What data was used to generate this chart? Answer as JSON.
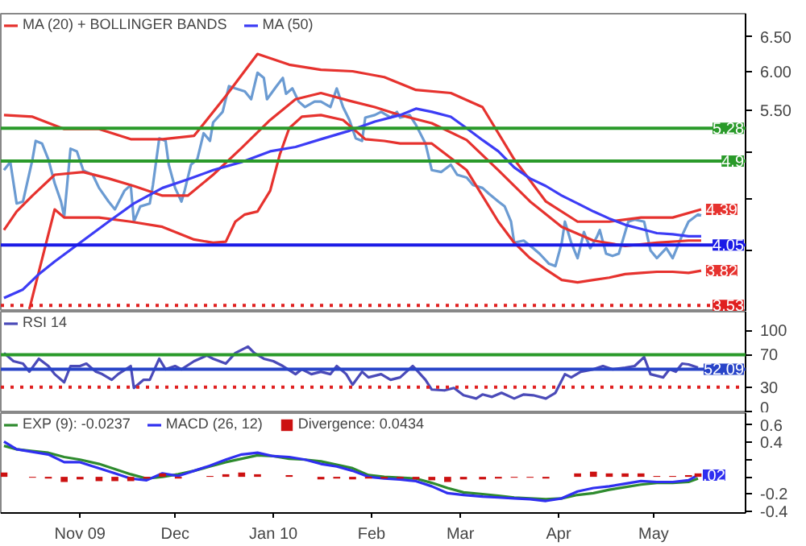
{
  "chart_data": [
    {
      "type": "line",
      "log": true,
      "legend": "top left",
      "tick_labels": "y",
      "xlim": [
        "2009-10-07",
        "2010-05-30"
      ],
      "ylim": [
        3.48,
        6.85
      ],
      "yticks": [
        {
          "value": 6.5,
          "label": "6.50"
        },
        {
          "value": 6.0,
          "label": "6.00"
        },
        {
          "value": 5.5,
          "label": "5.50"
        },
        {
          "value": 5.0,
          "label": null
        },
        {
          "value": 4.5,
          "label": null
        },
        {
          "value": 4.0,
          "label": null
        }
      ],
      "ref_lines": [
        {
          "axis": "y",
          "value": 5.28,
          "label": "5.28",
          "color": "#2a9a2a",
          "line_style": "solid"
        },
        {
          "axis": "y",
          "value": 4.9,
          "label": "4.9",
          "color": "#2a9a2a",
          "line_style": "solid"
        },
        {
          "axis": "y",
          "value": 4.05,
          "label": "4.05",
          "color": "#1a1ae6",
          "line_style": "solid"
        },
        {
          "axis": "y",
          "value": 3.53,
          "label": "3.53",
          "color": "#e02020",
          "line_style": "dotted"
        }
      ],
      "annotations": [
        {
          "text": "4.39",
          "x": "2010-05-16",
          "y": 4.39
        },
        {
          "text": "3.82",
          "x": "2010-05-16",
          "y": 3.82
        }
      ],
      "series": [
        {
          "color": "#6b9bd2",
          "x": [
            "2009-10-08",
            "2009-10-10",
            "2009-10-12",
            "2009-10-14",
            "2009-10-17",
            "2009-10-18",
            "2009-10-20",
            "2009-10-22",
            "2009-10-24",
            "2009-10-26",
            "2009-10-27",
            "2009-10-29",
            "2009-10-31",
            "2009-11-02",
            "2009-11-03",
            "2009-11-05",
            "2009-11-07",
            "2009-11-10",
            "2009-11-12",
            "2009-11-15",
            "2009-11-17",
            "2009-11-18",
            "2009-11-20",
            "2009-11-23",
            "2009-11-24",
            "2009-11-26",
            "2009-11-28",
            "2009-11-29",
            "2009-12-01",
            "2009-12-03",
            "2009-12-04",
            "2009-12-06",
            "2009-12-08",
            "2009-12-10",
            "2009-12-12",
            "2009-12-13",
            "2009-12-16",
            "2009-12-18",
            "2009-12-20",
            "2009-12-23",
            "2009-12-25",
            "2009-12-27",
            "2009-12-29",
            "2009-12-30",
            "2010-01-02",
            "2010-01-04",
            "2010-01-05",
            "2010-01-07",
            "2010-01-09",
            "2010-01-11",
            "2010-01-14",
            "2010-01-16",
            "2010-01-19",
            "2010-01-21",
            "2010-01-23",
            "2010-01-25",
            "2010-01-27",
            "2010-01-29",
            "2010-01-30",
            "2010-02-02",
            "2010-02-04",
            "2010-02-07",
            "2010-02-09",
            "2010-02-10",
            "2010-02-13",
            "2010-02-15",
            "2010-02-18",
            "2010-02-20",
            "2010-02-23",
            "2010-02-26",
            "2010-02-28",
            "2010-03-03",
            "2010-03-05",
            "2010-03-08",
            "2010-03-10",
            "2010-03-13",
            "2010-03-15",
            "2010-03-17",
            "2010-03-18",
            "2010-03-21",
            "2010-03-24",
            "2010-03-26",
            "2010-03-29",
            "2010-03-31",
            "2010-04-02",
            "2010-04-03",
            "2010-04-05",
            "2010-04-07",
            "2010-04-09",
            "2010-04-11",
            "2010-04-13",
            "2010-04-14",
            "2010-04-16",
            "2010-04-18",
            "2010-04-20",
            "2010-04-23",
            "2010-04-25",
            "2010-04-28",
            "2010-04-30",
            "2010-05-02",
            "2010-05-05",
            "2010-05-07",
            "2010-05-10",
            "2010-05-12",
            "2010-05-15",
            "2010-05-16"
          ],
          "values": [
            4.8,
            4.89,
            4.45,
            4.47,
            4.92,
            5.13,
            5.1,
            4.92,
            4.66,
            4.47,
            4.32,
            5.04,
            5.01,
            4.8,
            4.78,
            4.75,
            4.61,
            4.47,
            4.39,
            4.58,
            4.64,
            4.27,
            4.42,
            4.45,
            4.64,
            5.16,
            5.13,
            4.86,
            4.61,
            4.47,
            4.58,
            4.86,
            4.92,
            5.22,
            5.13,
            5.35,
            5.48,
            5.81,
            5.78,
            5.74,
            5.64,
            5.99,
            5.92,
            5.64,
            5.81,
            5.92,
            5.71,
            5.78,
            5.61,
            5.54,
            5.61,
            5.61,
            5.54,
            5.78,
            5.54,
            5.38,
            5.16,
            5.13,
            5.41,
            5.44,
            5.48,
            5.41,
            5.48,
            5.41,
            5.44,
            5.32,
            5.1,
            4.8,
            4.78,
            4.86,
            4.75,
            4.72,
            4.64,
            4.61,
            4.55,
            4.47,
            4.42,
            4.27,
            4.07,
            4.09,
            4.02,
            3.97,
            3.88,
            3.86,
            4.07,
            4.27,
            4.07,
            3.93,
            4.17,
            4.02,
            4.12,
            4.19,
            3.97,
            3.95,
            3.97,
            4.27,
            4.29,
            4.27,
            4.0,
            3.93,
            4.02,
            3.93,
            4.14,
            4.27,
            4.34,
            4.33
          ]
        },
        {
          "color": "#e6322e",
          "x": [
            "2009-10-08",
            "2009-10-17",
            "2009-10-27",
            "2009-11-07",
            "2009-11-17",
            "2009-11-27",
            "2009-12-07",
            "2009-12-17",
            "2009-12-27",
            "2010-01-06",
            "2010-01-16",
            "2010-01-26",
            "2010-02-05",
            "2010-02-15",
            "2010-02-26",
            "2010-03-08",
            "2010-03-18",
            "2010-03-28",
            "2010-04-07",
            "2010-04-17",
            "2010-04-27",
            "2010-05-07",
            "2010-05-16"
          ],
          "values": [
            5.44,
            5.42,
            5.27,
            5.27,
            5.15,
            5.15,
            5.19,
            5.68,
            6.25,
            6.1,
            6.03,
            6.01,
            5.93,
            5.76,
            5.72,
            5.54,
            4.92,
            4.47,
            4.27,
            4.27,
            4.31,
            4.31,
            4.39
          ]
        },
        {
          "name": "MA (20) + BOLLINGER BANDS",
          "color": "#e6322e",
          "x": [
            "2009-10-08",
            "2009-10-12",
            "2009-10-17",
            "2009-10-24",
            "2009-11-02",
            "2009-11-10",
            "2009-11-18",
            "2009-11-27",
            "2009-12-05",
            "2009-12-13",
            "2009-12-22",
            "2009-12-31",
            "2010-01-08",
            "2010-01-16",
            "2010-01-25",
            "2010-02-02",
            "2010-02-10",
            "2010-02-20",
            "2010-03-03",
            "2010-03-13",
            "2010-03-23",
            "2010-04-02",
            "2010-04-12",
            "2010-04-22",
            "2010-05-02",
            "2010-05-12",
            "2010-05-16"
          ],
          "values": [
            4.19,
            4.37,
            4.53,
            4.75,
            4.78,
            4.71,
            4.63,
            4.53,
            4.53,
            4.75,
            5.05,
            5.38,
            5.64,
            5.72,
            5.62,
            5.54,
            5.44,
            5.34,
            5.14,
            4.8,
            4.47,
            4.22,
            4.09,
            4.04,
            4.07,
            4.09,
            4.09
          ]
        },
        {
          "color": "#e6322e",
          "x": [
            "2009-10-16",
            "2009-10-24",
            "2009-10-27",
            "2009-11-07",
            "2009-11-17",
            "2009-11-27",
            "2009-12-07",
            "2009-12-13",
            "2009-12-17",
            "2009-12-20",
            "2009-12-23",
            "2009-12-27",
            "2009-12-31",
            "2010-01-03",
            "2010-01-06",
            "2010-01-10",
            "2010-01-16",
            "2010-01-23",
            "2010-01-30",
            "2010-02-05",
            "2010-02-10",
            "2010-02-20",
            "2010-03-03",
            "2010-03-13",
            "2010-03-18",
            "2010-03-23",
            "2010-03-28",
            "2010-04-02",
            "2010-04-07",
            "2010-04-12",
            "2010-04-17",
            "2010-04-22",
            "2010-04-27",
            "2010-05-02",
            "2010-05-07",
            "2010-05-12",
            "2010-05-16"
          ],
          "values": [
            3.5,
            4.39,
            4.31,
            4.31,
            4.27,
            4.22,
            4.1,
            4.07,
            4.08,
            4.27,
            4.34,
            4.37,
            4.58,
            4.97,
            5.28,
            5.42,
            5.44,
            5.38,
            5.15,
            5.13,
            5.1,
            5.1,
            4.8,
            4.27,
            4.07,
            3.93,
            3.83,
            3.74,
            3.72,
            3.74,
            3.76,
            3.79,
            3.8,
            3.81,
            3.81,
            3.8,
            3.82
          ]
        },
        {
          "name": "MA (50)",
          "color": "#3c3cf5",
          "x": [
            "2009-10-08",
            "2009-10-14",
            "2009-10-19",
            "2009-10-24",
            "2009-11-10",
            "2009-11-18",
            "2009-11-27",
            "2009-12-05",
            "2009-12-13",
            "2009-12-22",
            "2009-12-31",
            "2010-01-08",
            "2010-01-16",
            "2010-01-25",
            "2010-02-02",
            "2010-02-10",
            "2010-02-15",
            "2010-02-20",
            "2010-02-26",
            "2010-03-03",
            "2010-03-08",
            "2010-03-13",
            "2010-03-18",
            "2010-03-23",
            "2010-03-28",
            "2010-04-02",
            "2010-04-07",
            "2010-04-12",
            "2010-04-17",
            "2010-04-22",
            "2010-04-27",
            "2010-05-02",
            "2010-05-07",
            "2010-05-12",
            "2010-05-16"
          ],
          "values": [
            3.59,
            3.66,
            3.79,
            3.9,
            4.27,
            4.45,
            4.61,
            4.7,
            4.8,
            4.89,
            5.01,
            5.06,
            5.15,
            5.25,
            5.36,
            5.44,
            5.52,
            5.48,
            5.42,
            5.28,
            5.14,
            5.01,
            4.83,
            4.71,
            4.63,
            4.53,
            4.45,
            4.37,
            4.3,
            4.24,
            4.2,
            4.16,
            4.15,
            4.13,
            4.13
          ]
        }
      ]
    },
    {
      "type": "line",
      "legend": "top left",
      "tick_labels": "y",
      "xlim": [
        "2009-10-07",
        "2010-05-30"
      ],
      "ylim": [
        -2,
        123
      ],
      "yticks": [
        100,
        70,
        30,
        0
      ],
      "ref_lines": [
        {
          "axis": "y",
          "value": 70,
          "color": "#2a9a2a",
          "line_style": "solid"
        },
        {
          "axis": "y",
          "value": 52.09,
          "label": "52.09",
          "color": "#2844c8",
          "line_style": "solid"
        },
        {
          "axis": "y",
          "value": 30,
          "color": "#e02020",
          "line_style": "dotted"
        }
      ],
      "series": [
        {
          "name": "RSI 14",
          "color": "#4a4ab8",
          "x": [
            "2009-10-08",
            "2009-10-11",
            "2009-10-14",
            "2009-10-16",
            "2009-10-19",
            "2009-10-22",
            "2009-10-24",
            "2009-10-27",
            "2009-10-29",
            "2009-11-01",
            "2009-11-03",
            "2009-11-06",
            "2009-11-08",
            "2009-11-11",
            "2009-11-13",
            "2009-11-17",
            "2009-11-18",
            "2009-11-21",
            "2009-11-23",
            "2009-11-26",
            "2009-11-28",
            "2009-12-01",
            "2009-12-03",
            "2009-12-07",
            "2009-12-11",
            "2009-12-13",
            "2009-12-17",
            "2009-12-20",
            "2009-12-24",
            "2009-12-26",
            "2009-12-29",
            "2010-01-01",
            "2010-01-04",
            "2010-01-08",
            "2010-01-10",
            "2010-01-13",
            "2010-01-16",
            "2010-01-19",
            "2010-01-21",
            "2010-01-24",
            "2010-01-26",
            "2010-01-29",
            "2010-01-31",
            "2010-02-04",
            "2010-02-07",
            "2010-02-10",
            "2010-02-14",
            "2010-02-15",
            "2010-02-18",
            "2010-02-20",
            "2010-02-24",
            "2010-02-27",
            "2010-03-02",
            "2010-03-06",
            "2010-03-08",
            "2010-03-11",
            "2010-03-14",
            "2010-03-18",
            "2010-03-21",
            "2010-03-24",
            "2010-03-28",
            "2010-03-31",
            "2010-04-03",
            "2010-04-05",
            "2010-04-08",
            "2010-04-12",
            "2010-04-15",
            "2010-04-18",
            "2010-04-22",
            "2010-04-25",
            "2010-04-28",
            "2010-04-30",
            "2010-05-04",
            "2010-05-06",
            "2010-05-08",
            "2010-05-10",
            "2010-05-12",
            "2010-05-15"
          ],
          "values": [
            72,
            62,
            59,
            49,
            65,
            56,
            46,
            36,
            56,
            56,
            59,
            49,
            46,
            39,
            46,
            56,
            29,
            39,
            39,
            65,
            52,
            56,
            52,
            62,
            69,
            65,
            59,
            72,
            80,
            72,
            65,
            62,
            56,
            46,
            52,
            46,
            49,
            46,
            56,
            46,
            33,
            49,
            42,
            46,
            39,
            42,
            56,
            52,
            39,
            27,
            26,
            29,
            20,
            16,
            21,
            18,
            23,
            16,
            21,
            20,
            16,
            23,
            46,
            42,
            49,
            52,
            56,
            52,
            54,
            56,
            67,
            46,
            42,
            52,
            49,
            59,
            58,
            54
          ]
        }
      ]
    },
    {
      "type": "line",
      "legend": "top left",
      "xlim": [
        "2009-10-07",
        "2010-05-30"
      ],
      "ylim": [
        -0.42,
        0.74
      ],
      "xticks": [
        {
          "value": "2009-11-01",
          "label": "Nov 09"
        },
        {
          "value": "2009-12-01",
          "label": "Dec"
        },
        {
          "value": "2010-01-01",
          "label": "Jan 10"
        },
        {
          "value": "2010-02-01",
          "label": "Feb"
        },
        {
          "value": "2010-03-01",
          "label": "Mar"
        },
        {
          "value": "2010-04-01",
          "label": "Apr"
        },
        {
          "value": "2010-05-01",
          "label": "May"
        }
      ],
      "yticks": [
        0.6,
        0.4,
        {
          "value": 0.2,
          "label": null
        },
        {
          "value": 0,
          "label": null
        },
        -0.2,
        -0.4
      ],
      "annotations": [
        {
          "text": ".02",
          "x": "2010-05-15",
          "y": 0.02
        }
      ],
      "x": [
        "2009-10-08",
        "2009-10-12",
        "2009-10-17",
        "2009-10-22",
        "2009-10-27",
        "2009-11-01",
        "2009-11-07",
        "2009-11-12",
        "2009-11-17",
        "2009-11-22",
        "2009-11-27",
        "2009-12-02",
        "2009-12-07",
        "2009-12-12",
        "2009-12-17",
        "2009-12-22",
        "2009-12-27",
        "2010-01-01",
        "2010-01-06",
        "2010-01-11",
        "2010-01-16",
        "2010-01-21",
        "2010-01-26",
        "2010-01-31",
        "2010-02-05",
        "2010-02-10",
        "2010-02-15",
        "2010-02-20",
        "2010-02-25",
        "2010-03-02",
        "2010-03-08",
        "2010-03-13",
        "2010-03-18",
        "2010-03-23",
        "2010-03-28",
        "2010-04-02",
        "2010-04-07",
        "2010-04-12",
        "2010-04-17",
        "2010-04-22",
        "2010-04-27",
        "2010-05-02",
        "2010-05-07",
        "2010-05-12",
        "2010-05-15"
      ],
      "series": [
        {
          "name": "Divergence: 0.0434",
          "type": "bar",
          "color": "#cc1111",
          "values": [
            0.05,
            0,
            -0.01,
            -0.02,
            -0.06,
            -0.03,
            -0.05,
            -0.05,
            -0.05,
            -0.02,
            0.04,
            -0.02,
            0,
            0.01,
            0.03,
            0.05,
            0.03,
            0,
            0.02,
            0,
            -0.03,
            -0.02,
            -0.03,
            -0.02,
            -0.02,
            -0.02,
            -0.03,
            -0.04,
            -0.06,
            -0.03,
            -0.03,
            -0.02,
            -0.01,
            -0.01,
            -0.02,
            0,
            0.04,
            0.06,
            0.04,
            0.04,
            0.04,
            0.01,
            0.01,
            0.02,
            0.04
          ]
        },
        {
          "name": "EXP (9): -0.0237",
          "color": "#2e8b2e",
          "values": [
            0.36,
            0.32,
            0.3,
            0.28,
            0.23,
            0.2,
            0.15,
            0.09,
            0.03,
            -0.02,
            0,
            0.03,
            0.07,
            0.12,
            0.17,
            0.21,
            0.25,
            0.24,
            0.21,
            0.2,
            0.18,
            0.14,
            0.1,
            0.02,
            0,
            -0.01,
            -0.02,
            -0.07,
            -0.13,
            -0.18,
            -0.2,
            -0.22,
            -0.24,
            -0.25,
            -0.26,
            -0.25,
            -0.21,
            -0.19,
            -0.15,
            -0.12,
            -0.09,
            -0.07,
            -0.07,
            -0.06,
            -0.02
          ]
        },
        {
          "name": "MACD (26, 12)",
          "color": "#2f2ff0",
          "values": [
            0.41,
            0.32,
            0.29,
            0.26,
            0.17,
            0.17,
            0.1,
            0.04,
            -0.02,
            -0.04,
            0.04,
            0.01,
            0.07,
            0.13,
            0.2,
            0.26,
            0.28,
            0.24,
            0.23,
            0.2,
            0.15,
            0.12,
            0.07,
            0,
            -0.02,
            -0.03,
            -0.05,
            -0.11,
            -0.19,
            -0.21,
            -0.23,
            -0.24,
            -0.25,
            -0.26,
            -0.28,
            -0.25,
            -0.17,
            -0.13,
            -0.11,
            -0.08,
            -0.05,
            -0.06,
            -0.06,
            -0.04,
            0.02
          ]
        }
      ]
    }
  ]
}
